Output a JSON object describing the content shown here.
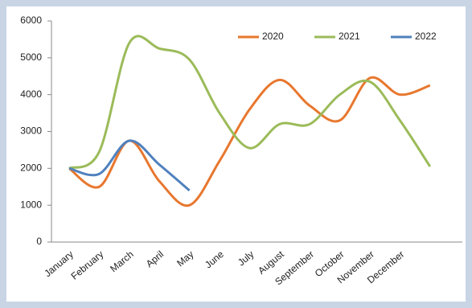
{
  "chart_data": {
    "type": "line",
    "categories": [
      "January",
      "February",
      "March",
      "April",
      "May",
      "June",
      "July",
      "August",
      "September",
      "October",
      "November",
      "December",
      null
    ],
    "series": [
      {
        "name": "2020",
        "color": "#e8772e",
        "values": [
          2000,
          1500,
          2750,
          1650,
          1000,
          2200,
          3600,
          4400,
          3700,
          3300,
          4450,
          4000,
          4250
        ]
      },
      {
        "name": "2021",
        "color": "#9bbb59",
        "values": [
          2000,
          2450,
          5400,
          5250,
          4950,
          3500,
          2550,
          3200,
          3200,
          4000,
          4350,
          3300,
          2050
        ]
      },
      {
        "name": "2022",
        "color": "#4f81bd",
        "values": [
          2000,
          1850,
          2750,
          2100,
          1400,
          null,
          null,
          null,
          null,
          null,
          null,
          null,
          null
        ]
      }
    ],
    "ylim": [
      0,
      6000
    ],
    "yticks": [
      0,
      1000,
      2000,
      3000,
      4000,
      5000,
      6000
    ],
    "legend": "top-right",
    "smooth": true
  }
}
